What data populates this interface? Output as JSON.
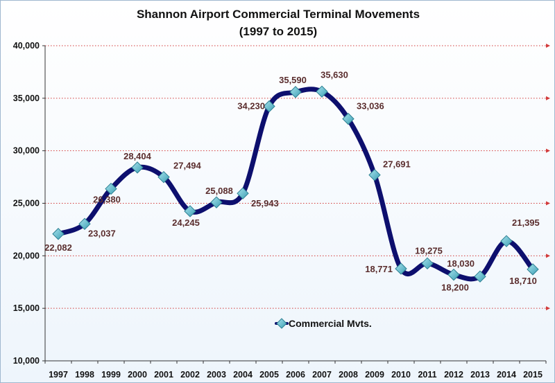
{
  "chart_data": {
    "type": "line",
    "title": "Shannon Airport Commercial Terminal Movements",
    "subtitle": "(1997 to 2015)",
    "categories": [
      "1997",
      "1998",
      "1999",
      "2000",
      "2001",
      "2002",
      "2003",
      "2004",
      "2005",
      "2006",
      "2007",
      "2008",
      "2009",
      "2010",
      "2011",
      "2012",
      "2013",
      "2014",
      "2015"
    ],
    "series": [
      {
        "name": "Commercial Mvts.",
        "values": [
          22082,
          23037,
          26380,
          28404,
          27494,
          24245,
          25088,
          25943,
          34230,
          35590,
          35630,
          33036,
          27691,
          18771,
          19275,
          18200,
          18030,
          21395,
          18710
        ],
        "data_labels": [
          "22,082",
          "23,037",
          "26,380",
          "28,404",
          "27,494",
          "24,245",
          "25,088",
          "25,943",
          "34,230",
          "35,590",
          "35,630",
          "33,036",
          "27,691",
          "18,771",
          "19,275",
          "18,200",
          "18,030",
          "21,395",
          "18,710"
        ]
      }
    ],
    "ylim": [
      10000,
      40000
    ],
    "yticks": [
      10000,
      15000,
      20000,
      25000,
      30000,
      35000,
      40000
    ],
    "ytick_labels": [
      "10,000",
      "15,000",
      "20,000",
      "25,000",
      "30,000",
      "35,000",
      "40,000"
    ],
    "xlabel": "",
    "ylabel": "",
    "grid": true,
    "smooth": true,
    "legend_position": "center",
    "colors": {
      "line": "#0d0f6e",
      "marker": "#5fb9c9",
      "marker_edge": "#2c7f91",
      "grid": "#d23a3a",
      "data_label": "#5a2d2d"
    }
  }
}
